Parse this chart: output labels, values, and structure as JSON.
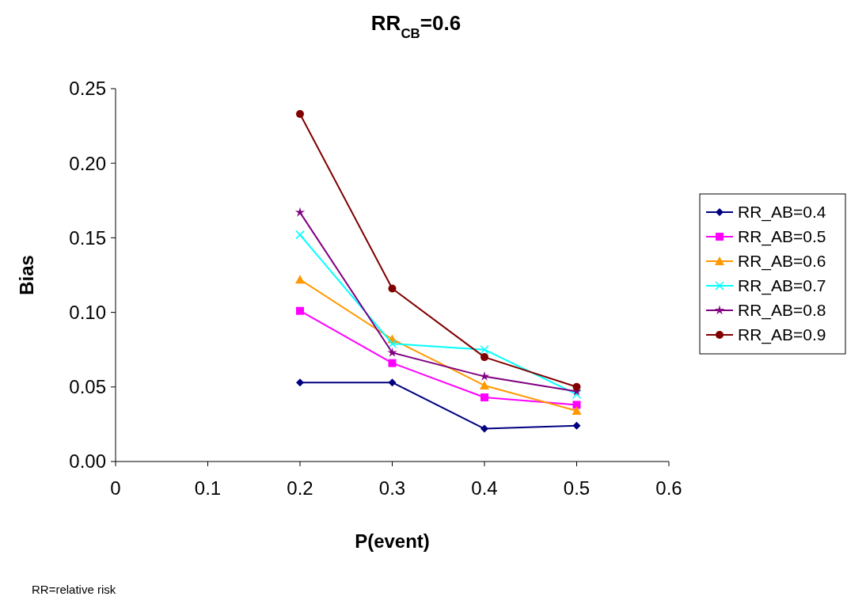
{
  "chart_data": {
    "type": "line",
    "title": "RR$_{CB}$=0.6",
    "xlabel": "P(event)",
    "ylabel": "Bias",
    "x": [
      0.2,
      0.3,
      0.4,
      0.5
    ],
    "series": [
      {
        "name": "RR_AB=0.4",
        "color": "#000080",
        "marker": "diamond",
        "values": [
          0.053,
          0.053,
          0.022,
          0.024
        ]
      },
      {
        "name": "RR_AB=0.5",
        "color": "#ff00ff",
        "marker": "square",
        "values": [
          0.101,
          0.066,
          0.043,
          0.038
        ]
      },
      {
        "name": "RR_AB=0.6",
        "color": "#ff9900",
        "marker": "triangle",
        "values": [
          0.122,
          0.082,
          0.051,
          0.034
        ]
      },
      {
        "name": "RR_AB=0.7",
        "color": "#00ffff",
        "marker": "cross",
        "values": [
          0.152,
          0.079,
          0.075,
          0.045
        ]
      },
      {
        "name": "RR_AB=0.8",
        "color": "#800080",
        "marker": "star",
        "values": [
          0.167,
          0.073,
          0.057,
          0.047
        ]
      },
      {
        "name": "RR_AB=0.9",
        "color": "#800000",
        "marker": "circle",
        "values": [
          0.233,
          0.116,
          0.07,
          0.05
        ]
      }
    ],
    "xlim": [
      0,
      0.6
    ],
    "xticks": [
      {
        "value": 0,
        "label": "0"
      },
      0.1,
      0.2,
      0.3,
      0.4,
      0.5,
      0.6
    ],
    "ylim": [
      0,
      0.25
    ],
    "yticks": [
      {
        "value": 0,
        "label": "0.00"
      },
      {
        "value": 0.05,
        "label": "0.05"
      },
      {
        "value": 0.1,
        "label": "0.10"
      },
      {
        "value": 0.15,
        "label": "0.15"
      },
      {
        "value": 0.2,
        "label": "0.20"
      },
      {
        "value": 0.25,
        "label": "0.25"
      }
    ],
    "grid": false,
    "legend": "right",
    "line_style": "solid",
    "annotations": [
      "RR=relative risk"
    ]
  }
}
